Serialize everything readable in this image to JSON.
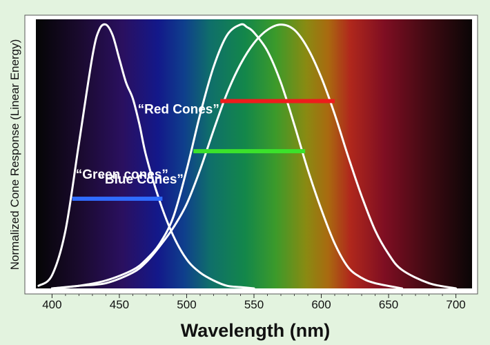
{
  "chart_data": {
    "type": "line",
    "title": "",
    "xlabel": "Wavelength (nm)",
    "ylabel": "Normalized Cone Response (Linear Energy)",
    "xlim": [
      388,
      712
    ],
    "ylim": [
      0,
      1.02
    ],
    "x_ticks": [
      400,
      450,
      500,
      550,
      600,
      650,
      700
    ],
    "y_ticks_labeled": false,
    "grid": false,
    "background": "visible spectrum gradient",
    "series": [
      {
        "x": [
          390,
          400,
          410,
          420,
          430,
          435,
          440,
          445,
          450,
          455,
          460,
          465,
          470,
          480,
          490,
          500,
          510,
          520,
          530,
          540,
          550
        ],
        "y": [
          0.01,
          0.05,
          0.22,
          0.55,
          0.88,
          0.98,
          1.0,
          0.96,
          0.87,
          0.78,
          0.72,
          0.62,
          0.5,
          0.33,
          0.2,
          0.11,
          0.06,
          0.03,
          0.01,
          0.005,
          0.0
        ],
        "color": "#ffffff"
      },
      {
        "x": [
          400,
          420,
          440,
          460,
          470,
          480,
          490,
          500,
          510,
          520,
          530,
          540,
          545,
          550,
          560,
          570,
          580,
          590,
          600,
          610,
          620,
          630,
          640,
          660
        ],
        "y": [
          0.0,
          0.01,
          0.03,
          0.07,
          0.11,
          0.17,
          0.27,
          0.45,
          0.66,
          0.84,
          0.96,
          1.0,
          0.99,
          0.97,
          0.9,
          0.78,
          0.62,
          0.45,
          0.3,
          0.17,
          0.08,
          0.04,
          0.02,
          0.0
        ],
        "color": "#ffffff"
      },
      {
        "x": [
          400,
          420,
          440,
          460,
          470,
          480,
          490,
          500,
          510,
          520,
          530,
          540,
          550,
          560,
          570,
          580,
          590,
          600,
          610,
          620,
          630,
          640,
          650,
          660,
          680,
          700
        ],
        "y": [
          0.0,
          0.01,
          0.02,
          0.06,
          0.1,
          0.16,
          0.23,
          0.32,
          0.45,
          0.6,
          0.74,
          0.85,
          0.93,
          0.98,
          1.0,
          0.98,
          0.91,
          0.8,
          0.66,
          0.5,
          0.35,
          0.22,
          0.13,
          0.07,
          0.02,
          0.0
        ],
        "color": "#ffffff"
      }
    ],
    "bands": [
      {
        "label": "“Blue Cones”",
        "x_start": 415,
        "x_end": 482,
        "y": 0.34,
        "color": "#2f6bff"
      },
      {
        "label": "“Green cones”",
        "x_start": 505,
        "x_end": 588,
        "y": 0.52,
        "color": "#3be22b"
      },
      {
        "label": "“Red Cones”",
        "x_start": 525,
        "x_end": 610,
        "y": 0.71,
        "color": "#ee1c1c"
      }
    ]
  }
}
